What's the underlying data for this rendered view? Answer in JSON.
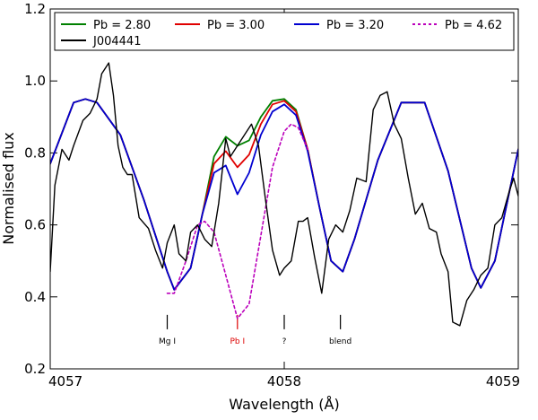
{
  "chart_data": {
    "type": "line",
    "xlabel": "Wavelength (Å)",
    "ylabel": "Normalised flux",
    "xlim": [
      4057,
      4059
    ],
    "ylim": [
      0.2,
      1.2
    ],
    "xticks": [
      4057,
      4058,
      4059
    ],
    "yticks": [
      0.2,
      0.4,
      0.6,
      0.8,
      1.0,
      1.2
    ],
    "xtick_labels": [
      "4057",
      "4058",
      "4059"
    ],
    "ytick_labels": [
      "0.2",
      "0.4",
      "0.6",
      "0.8",
      "1.0",
      "1.2"
    ],
    "grid": false,
    "legend_position": "top",
    "series": [
      {
        "name": "Pb = 2.80",
        "color": "#008000",
        "style": "solid",
        "x": [
          4057.0,
          4057.1,
          4057.15,
          4057.2,
          4057.3,
          4057.4,
          4057.5,
          4057.53,
          4057.6,
          4057.65,
          4057.7,
          4057.75,
          4057.8,
          4057.85,
          4057.9,
          4057.95,
          4058.0,
          4058.05,
          4058.1,
          4058.15,
          4058.2,
          4058.25,
          4058.3,
          4058.4,
          4058.5,
          4058.6,
          4058.7,
          4058.8,
          4058.84,
          4058.9,
          4059.0
        ],
        "y": [
          0.77,
          0.94,
          0.95,
          0.94,
          0.85,
          0.67,
          0.47,
          0.42,
          0.48,
          0.63,
          0.79,
          0.845,
          0.82,
          0.835,
          0.9,
          0.945,
          0.95,
          0.92,
          0.81,
          0.65,
          0.5,
          0.47,
          0.56,
          0.78,
          0.94,
          0.94,
          0.75,
          0.48,
          0.425,
          0.5,
          0.81
        ]
      },
      {
        "name": "Pb = 3.00",
        "color": "#e00000",
        "style": "solid",
        "x": [
          4057.0,
          4057.1,
          4057.15,
          4057.2,
          4057.3,
          4057.4,
          4057.5,
          4057.53,
          4057.6,
          4057.65,
          4057.7,
          4057.75,
          4057.8,
          4057.85,
          4057.9,
          4057.95,
          4058.0,
          4058.05,
          4058.1,
          4058.15,
          4058.2,
          4058.25,
          4058.3,
          4058.4,
          4058.5,
          4058.6,
          4058.7,
          4058.8,
          4058.84,
          4058.9,
          4059.0
        ],
        "y": [
          0.77,
          0.94,
          0.95,
          0.94,
          0.85,
          0.67,
          0.47,
          0.42,
          0.48,
          0.63,
          0.77,
          0.805,
          0.76,
          0.795,
          0.88,
          0.935,
          0.945,
          0.915,
          0.81,
          0.65,
          0.5,
          0.47,
          0.56,
          0.78,
          0.94,
          0.94,
          0.75,
          0.48,
          0.425,
          0.5,
          0.81
        ]
      },
      {
        "name": "Pb = 3.20",
        "color": "#0000d0",
        "style": "solid",
        "x": [
          4057.0,
          4057.1,
          4057.15,
          4057.2,
          4057.3,
          4057.4,
          4057.5,
          4057.53,
          4057.6,
          4057.65,
          4057.7,
          4057.75,
          4057.8,
          4057.85,
          4057.9,
          4057.95,
          4058.0,
          4058.05,
          4058.1,
          4058.15,
          4058.2,
          4058.25,
          4058.3,
          4058.4,
          4058.5,
          4058.6,
          4058.7,
          4058.8,
          4058.84,
          4058.9,
          4059.0
        ],
        "y": [
          0.77,
          0.94,
          0.95,
          0.94,
          0.85,
          0.67,
          0.47,
          0.42,
          0.48,
          0.63,
          0.745,
          0.765,
          0.685,
          0.745,
          0.85,
          0.915,
          0.935,
          0.905,
          0.805,
          0.65,
          0.5,
          0.47,
          0.56,
          0.78,
          0.94,
          0.94,
          0.75,
          0.48,
          0.425,
          0.5,
          0.81
        ]
      },
      {
        "name": "Pb = 4.62",
        "color": "#bb00bb",
        "style": "dashed",
        "x": [
          4057.5,
          4057.53,
          4057.58,
          4057.63,
          4057.66,
          4057.7,
          4057.75,
          4057.8,
          4057.85,
          4057.9,
          4057.95,
          4058.0,
          4058.03,
          4058.06,
          4058.1
        ],
        "y": [
          0.41,
          0.41,
          0.5,
          0.6,
          0.61,
          0.58,
          0.46,
          0.34,
          0.38,
          0.57,
          0.76,
          0.86,
          0.88,
          0.87,
          0.81
        ]
      },
      {
        "name": "J004441",
        "color": "#000000",
        "style": "solid",
        "x": [
          4057.0,
          4057.02,
          4057.05,
          4057.08,
          4057.1,
          4057.14,
          4057.17,
          4057.2,
          4057.22,
          4057.25,
          4057.27,
          4057.29,
          4057.31,
          4057.33,
          4057.35,
          4057.38,
          4057.42,
          4057.45,
          4057.48,
          4057.5,
          4057.53,
          4057.55,
          4057.58,
          4057.6,
          4057.63,
          4057.66,
          4057.69,
          4057.72,
          4057.75,
          4057.77,
          4057.8,
          4057.83,
          4057.86,
          4057.89,
          4057.92,
          4057.95,
          4057.98,
          4058.0,
          4058.03,
          4058.06,
          4058.08,
          4058.1,
          4058.13,
          4058.16,
          4058.19,
          4058.22,
          4058.25,
          4058.28,
          4058.31,
          4058.35,
          4058.38,
          4058.41,
          4058.44,
          4058.47,
          4058.5,
          4058.53,
          4058.56,
          4058.59,
          4058.62,
          4058.65,
          4058.67,
          4058.7,
          4058.72,
          4058.75,
          4058.78,
          4058.81,
          4058.84,
          4058.87,
          4058.9,
          4058.93,
          4058.96,
          4058.98,
          4059.0
        ],
        "y": [
          0.47,
          0.71,
          0.81,
          0.78,
          0.82,
          0.89,
          0.91,
          0.95,
          1.02,
          1.05,
          0.96,
          0.82,
          0.76,
          0.74,
          0.74,
          0.62,
          0.59,
          0.53,
          0.48,
          0.55,
          0.6,
          0.52,
          0.5,
          0.58,
          0.6,
          0.56,
          0.54,
          0.66,
          0.84,
          0.79,
          0.82,
          0.85,
          0.88,
          0.82,
          0.67,
          0.53,
          0.46,
          0.48,
          0.5,
          0.61,
          0.61,
          0.62,
          0.51,
          0.41,
          0.56,
          0.6,
          0.58,
          0.64,
          0.73,
          0.72,
          0.92,
          0.96,
          0.97,
          0.88,
          0.84,
          0.73,
          0.63,
          0.66,
          0.59,
          0.58,
          0.52,
          0.47,
          0.33,
          0.32,
          0.39,
          0.42,
          0.46,
          0.48,
          0.6,
          0.62,
          0.69,
          0.73,
          0.68
        ]
      }
    ],
    "annotations": [
      {
        "label": "Mg I",
        "x": 4057.5,
        "color": "#000000"
      },
      {
        "label": "Pb I",
        "x": 4057.8,
        "color": "#dd0000"
      },
      {
        "label": "?",
        "x": 4058.0,
        "color": "#000000"
      },
      {
        "label": "blend",
        "x": 4058.24,
        "color": "#000000"
      }
    ]
  }
}
